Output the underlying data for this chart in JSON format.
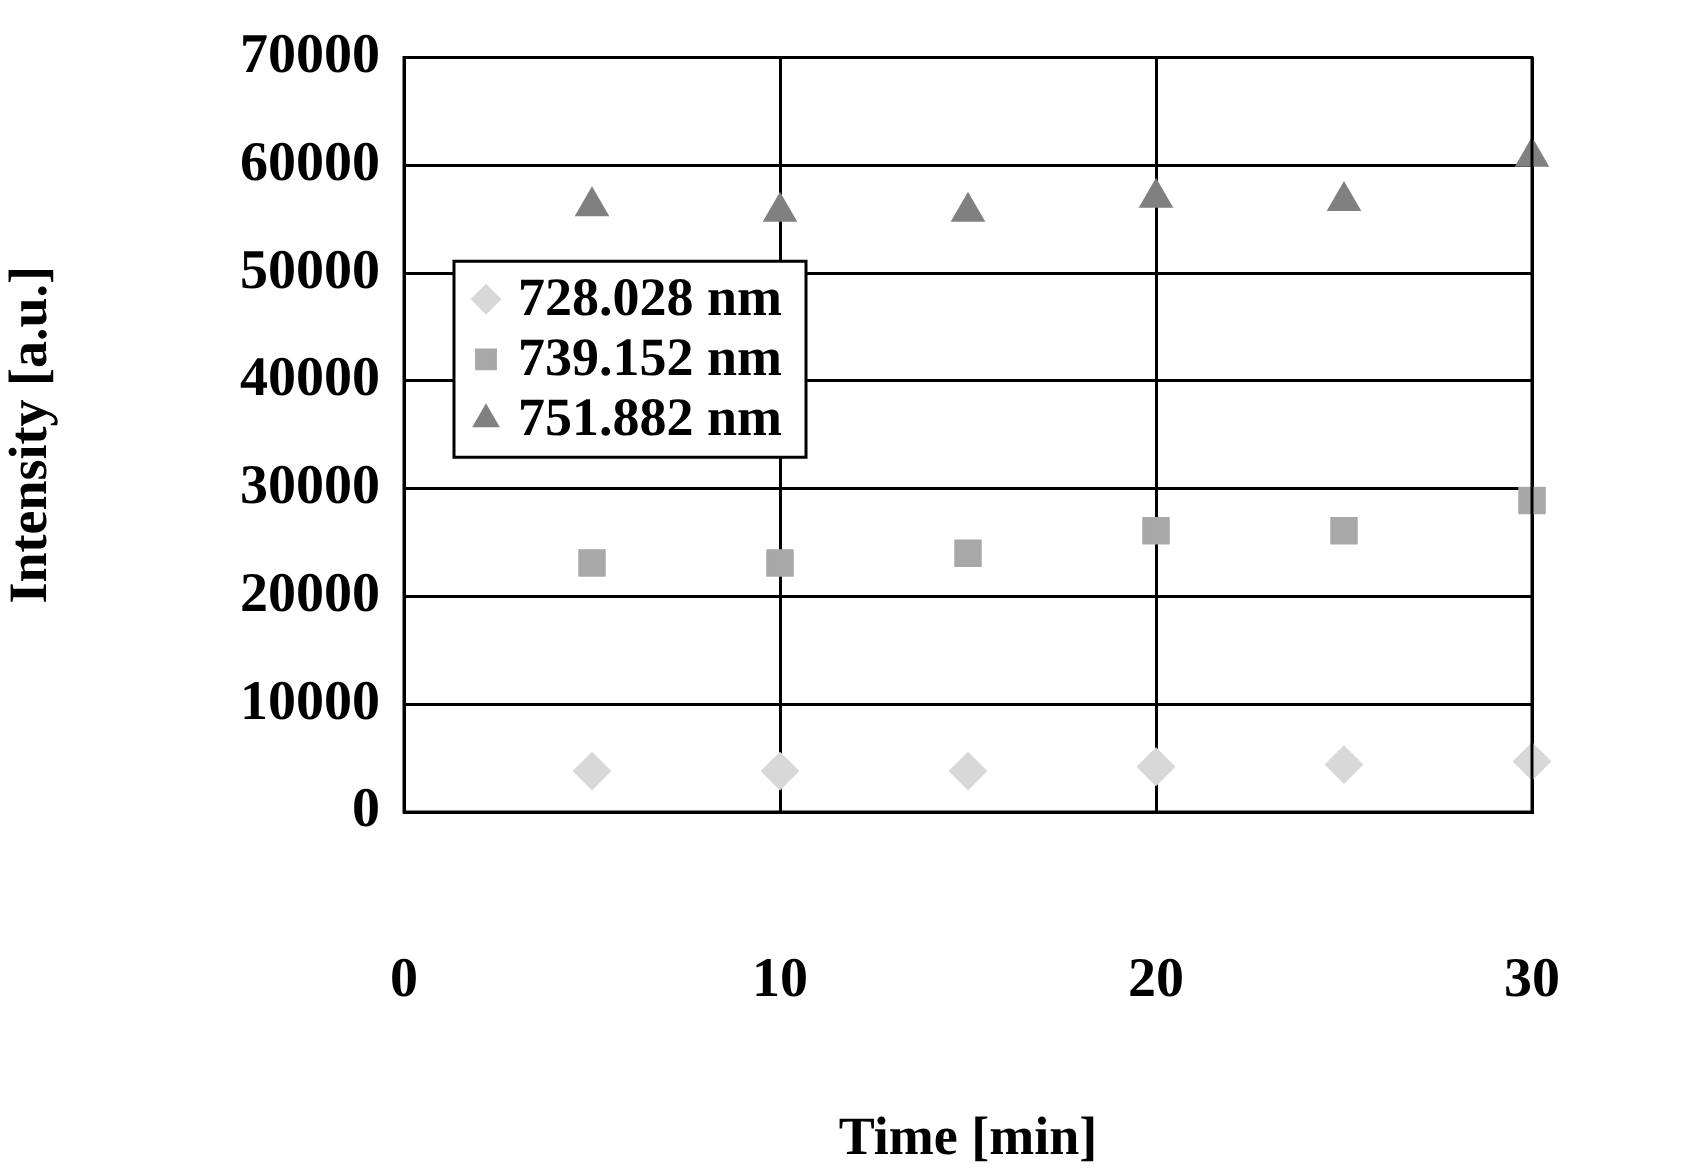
{
  "chart_data": {
    "type": "scatter",
    "xlabel": "Time [min]",
    "ylabel": "Intensity [a.u.]",
    "x": [
      5,
      10,
      15,
      20,
      25,
      30
    ],
    "series": [
      {
        "name": "728.028 nm",
        "color": "#d8d8d8",
        "marker": "diamond",
        "values": [
          3800,
          3800,
          3800,
          4200,
          4400,
          4700
        ]
      },
      {
        "name": "739.152 nm",
        "color": "#a8a8a8",
        "marker": "square",
        "values": [
          23100,
          23100,
          24000,
          26100,
          26100,
          28900
        ]
      },
      {
        "name": "751.882 nm",
        "color": "#808080",
        "marker": "triangle",
        "values": [
          56200,
          55700,
          55700,
          57000,
          56700,
          60800
        ]
      }
    ],
    "xlim": [
      0,
      30
    ],
    "xticks": [
      0,
      10,
      20,
      30
    ],
    "ylim": [
      0,
      70000
    ],
    "yticks": [
      0,
      10000,
      20000,
      30000,
      40000,
      50000,
      60000,
      70000
    ],
    "grid": true,
    "legend": "left"
  }
}
